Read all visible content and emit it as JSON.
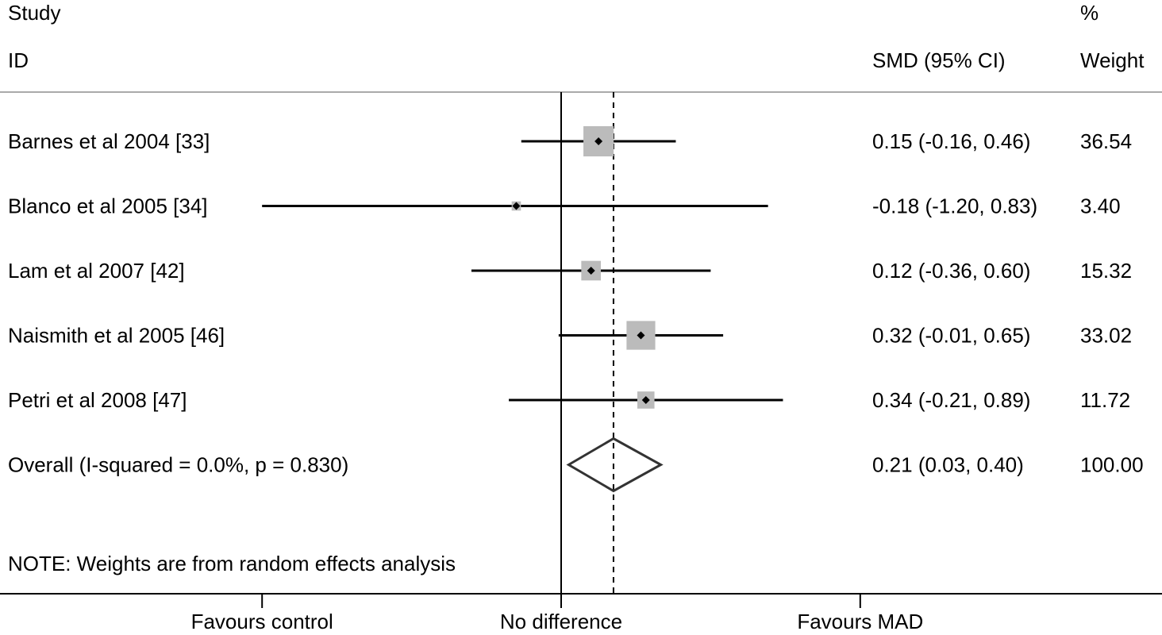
{
  "chart_data": {
    "type": "forest",
    "headers": {
      "study_line1": "Study",
      "study_line2": "ID",
      "estimate": "SMD (95% CI)",
      "weight_line1": "%",
      "weight_line2": "Weight"
    },
    "studies": [
      {
        "label": "Barnes et al 2004 [33]",
        "smd": 0.15,
        "ci": [
          -0.16,
          0.46
        ],
        "estimate_text": "0.15 (-0.16, 0.46)",
        "weight": 36.54,
        "weight_text": "36.54"
      },
      {
        "label": "Blanco et al 2005 [34]",
        "smd": -0.18,
        "ci": [
          -1.2,
          0.83
        ],
        "estimate_text": "-0.18 (-1.20, 0.83)",
        "weight": 3.4,
        "weight_text": "3.40"
      },
      {
        "label": "Lam et al 2007 [42]",
        "smd": 0.12,
        "ci": [
          -0.36,
          0.6
        ],
        "estimate_text": "0.12 (-0.36, 0.60)",
        "weight": 15.32,
        "weight_text": "15.32"
      },
      {
        "label": "Naismith et al 2005 [46]",
        "smd": 0.32,
        "ci": [
          -0.01,
          0.65
        ],
        "estimate_text": "0.32 (-0.01, 0.65)",
        "weight": 33.02,
        "weight_text": "33.02"
      },
      {
        "label": "Petri et al 2008 [47]",
        "smd": 0.34,
        "ci": [
          -0.21,
          0.89
        ],
        "estimate_text": "0.34 (-0.21, 0.89)",
        "weight": 11.72,
        "weight_text": "11.72"
      }
    ],
    "overall": {
      "label": "Overall  (I-squared = 0.0%, p = 0.830)",
      "smd": 0.21,
      "ci": [
        0.03,
        0.4
      ],
      "estimate_text": "0.21 (0.03, 0.40)",
      "weight_text": "100.00"
    },
    "note": "NOTE: Weights are from random effects analysis",
    "null_value": 0,
    "x_ticks": [
      {
        "value": -1.2,
        "label": "Favours control"
      },
      {
        "value": 0,
        "label": "No difference"
      },
      {
        "value": 1.2,
        "label": "Favours MAD"
      }
    ],
    "colors": {
      "weight_box": "#bbbbbb",
      "line": "#000000",
      "overall_diamond": "#333333",
      "header_rule": "#aaaaaa"
    }
  }
}
